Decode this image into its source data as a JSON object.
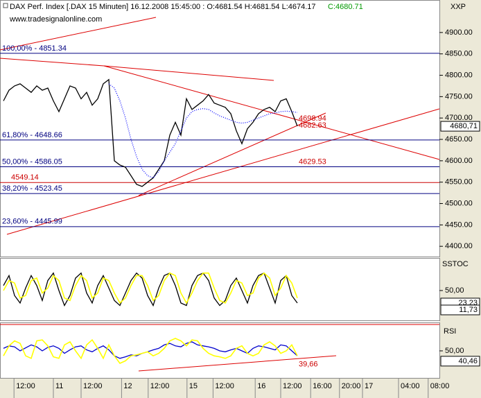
{
  "chart_data": {
    "type": "line",
    "title": "DAX Perf. Index [.DAX  15 Minuten] 16.12.2008 15:45:00 : O:4681.54 H:4681.54 L:4674.17",
    "close_label": "C:4680.71",
    "subtitle": "www.tradesignalonline.com",
    "symbol": "XXP",
    "x": [
      0,
      1,
      2,
      3,
      4,
      5,
      6,
      7,
      8,
      9,
      10,
      11,
      12,
      13,
      14,
      15,
      16,
      17,
      18,
      19,
      20,
      21,
      22,
      23,
      24,
      25,
      26,
      27,
      28,
      29,
      30,
      31,
      32,
      33,
      34,
      35,
      36,
      37,
      38,
      39,
      40,
      41,
      42,
      43,
      44,
      45,
      46,
      47,
      48,
      49,
      50,
      51,
      52,
      53
    ],
    "xlim": [
      -0.625,
      78.625
    ],
    "xticks": [
      {
        "value": 1.9,
        "label": "12:00"
      },
      {
        "value": 9,
        "label": "11"
      },
      {
        "value": 14,
        "label": "12:00"
      },
      {
        "value": 21.3,
        "label": "12"
      },
      {
        "value": 26.1,
        "label": "12:00"
      },
      {
        "value": 33.1,
        "label": "15"
      },
      {
        "value": 37.8,
        "label": "12:00"
      },
      {
        "value": 45.4,
        "label": "16"
      },
      {
        "value": 50,
        "label": "12:00"
      },
      {
        "value": 55.4,
        "label": "16:00"
      },
      {
        "value": 60.6,
        "label": "20:00"
      },
      {
        "value": 64.75,
        "label": "17"
      },
      {
        "value": 71.25,
        "label": "04:00"
      },
      {
        "value": 76.6,
        "label": "08:00"
      }
    ],
    "ylim": [
      4376,
      4976
    ],
    "yticks": [
      {
        "value": 4400,
        "label": "4400.00"
      },
      {
        "value": 4450,
        "label": "4450.00"
      },
      {
        "value": 4500,
        "label": "4500.00"
      },
      {
        "value": 4550,
        "label": "4550.00"
      },
      {
        "value": 4600,
        "label": "4600.00"
      },
      {
        "value": 4650,
        "label": "4650.00"
      },
      {
        "value": 4700,
        "label": "4700.00"
      },
      {
        "value": 4750,
        "label": "4750.00"
      },
      {
        "value": 4800,
        "label": "4800.00"
      },
      {
        "value": 4850,
        "label": "4850.00"
      },
      {
        "value": 4900,
        "label": "4900.00"
      }
    ],
    "series": [
      {
        "color": "#000000",
        "values": [
          4740,
          4765,
          4775,
          4780,
          4770,
          4760,
          4775,
          4765,
          4770,
          4740,
          4715,
          4745,
          4775,
          4770,
          4745,
          4760,
          4730,
          4745,
          4780,
          4790,
          4600,
          4590,
          4585,
          4565,
          4545,
          4540,
          4550,
          4560,
          4580,
          4600,
          4660,
          4690,
          4660,
          4745,
          4720,
          4730,
          4740,
          4755,
          4735,
          4730,
          4725,
          4710,
          4670,
          4640,
          4675,
          4690,
          4710,
          4720,
          4725,
          4715,
          4740,
          4745,
          4715,
          4681
        ]
      },
      {
        "color": "#0000ff",
        "values": [
          null,
          null,
          null,
          null,
          null,
          null,
          null,
          null,
          null,
          null,
          null,
          null,
          null,
          null,
          null,
          null,
          null,
          null,
          null,
          4780,
          4770,
          4740,
          4700,
          4650,
          4610,
          4580,
          4565,
          4560,
          4575,
          4600,
          4620,
          4640,
          4670,
          4700,
          4715,
          4720,
          4722,
          4720,
          4712,
          4705,
          4700,
          4695,
          4690,
          4688,
          4690,
          4695,
          4700,
          4705,
          4710,
          4712,
          4715,
          4716,
          4715,
          4713
        ]
      }
    ],
    "levels": [
      {
        "value": 4851.34,
        "label": "100,00% - 4851.34",
        "color": "#000080"
      },
      {
        "value": 4648.66,
        "label": "61,80% - 4648.66",
        "color": "#000080"
      },
      {
        "value": 4586.05,
        "label": "50,00% - 4586.05",
        "color": "#000080"
      },
      {
        "value": 4549.14,
        "label": "4549.14",
        "color": "#cc0000"
      },
      {
        "value": 4523.45,
        "label": "38,20% - 4523.45",
        "color": "#000080"
      },
      {
        "value": 4445.99,
        "label": "23,60% - 4445.99",
        "color": "#000080"
      }
    ],
    "annotations": [
      {
        "value": 4698.94,
        "label": "4698.94"
      },
      {
        "value": 4682.63,
        "label": "4682.63"
      },
      {
        "value": 4629.53,
        "label": "4629.53"
      }
    ],
    "last": {
      "value": 4680.71,
      "label": "4680,71"
    },
    "stoch": {
      "name": "SSTOC",
      "ylim": [
        0,
        100
      ],
      "yticks": [
        {
          "value": 50,
          "label": "50,00"
        }
      ],
      "series": [
        {
          "color": "#000000",
          "values": [
            60,
            80,
            40,
            25,
            55,
            80,
            60,
            30,
            70,
            85,
            50,
            20,
            40,
            75,
            85,
            45,
            25,
            60,
            80,
            55,
            30,
            20,
            45,
            70,
            85,
            75,
            40,
            20,
            55,
            80,
            85,
            60,
            25,
            20,
            60,
            80,
            85,
            70,
            35,
            20,
            30,
            60,
            75,
            50,
            25,
            60,
            80,
            85,
            55,
            25,
            70,
            80,
            40,
            25
          ]
        },
        {
          "color": "#ffff00",
          "values": [
            50,
            70,
            65,
            35,
            40,
            70,
            75,
            45,
            55,
            80,
            70,
            35,
            30,
            60,
            80,
            70,
            35,
            45,
            75,
            70,
            45,
            25,
            35,
            60,
            80,
            80,
            60,
            30,
            40,
            70,
            85,
            80,
            45,
            25,
            45,
            70,
            85,
            85,
            55,
            30,
            25,
            45,
            70,
            65,
            40,
            45,
            75,
            85,
            75,
            40,
            55,
            80,
            65,
            35
          ]
        }
      ],
      "last": [
        {
          "value": 23.23,
          "label": "23,23"
        },
        {
          "value": 11.73,
          "label": "11,73"
        }
      ]
    },
    "rsi": {
      "name": "RSI",
      "ylim": [
        0,
        100
      ],
      "yticks": [
        {
          "value": 50,
          "label": "50,00"
        }
      ],
      "series": [
        {
          "color": "#0000cc",
          "values": [
            55,
            60,
            58,
            50,
            56,
            62,
            58,
            50,
            57,
            60,
            55,
            45,
            52,
            58,
            60,
            52,
            48,
            55,
            60,
            52,
            40,
            35,
            38,
            42,
            40,
            45,
            48,
            52,
            55,
            62,
            65,
            60,
            58,
            65,
            68,
            62,
            60,
            58,
            55,
            50,
            48,
            52,
            55,
            50,
            45,
            55,
            60,
            58,
            55,
            52,
            62,
            60,
            50,
            40
          ]
        },
        {
          "color": "#ffff00",
          "values": [
            40,
            60,
            70,
            65,
            40,
            35,
            70,
            72,
            60,
            38,
            35,
            62,
            68,
            50,
            35,
            62,
            72,
            55,
            35,
            62,
            40,
            25,
            30,
            40,
            42,
            45,
            48,
            40,
            45,
            55,
            70,
            75,
            70,
            60,
            72,
            70,
            55,
            45,
            40,
            38,
            35,
            40,
            55,
            60,
            45,
            40,
            45,
            62,
            68,
            60,
            45,
            50,
            62,
            40
          ]
        }
      ],
      "last": {
        "value": 40.46,
        "label": "40,46"
      },
      "annotation": {
        "value": 39.66,
        "label": "39,66"
      }
    }
  }
}
